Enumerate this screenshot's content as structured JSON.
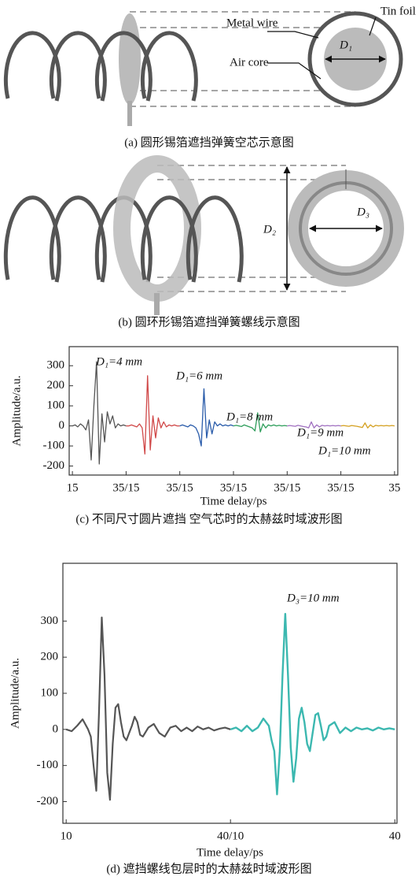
{
  "figure_a": {
    "labels": {
      "metal_wire": "Metal wire",
      "tin_foil": "Tin foil",
      "air_core": "Air core",
      "d1": "D₁"
    },
    "caption": "(a) 圆形锡箔遮挡弹簧空芯示意图"
  },
  "figure_b": {
    "labels": {
      "d2": "D₂",
      "d3": "D₃"
    },
    "caption": "(b) 圆环形锡箔遮挡弹簧螺线示意图"
  },
  "chart_data": [
    {
      "type": "line",
      "x_label": "Time delay/ps",
      "y_label": "Amplitude/a.u.",
      "caption": "(c) 不同尺寸圆片遮挡 空气芯时的太赫兹时域波形图",
      "xlim": [
        13.8,
        136.2
      ],
      "ylim": [
        -245,
        395
      ],
      "xticks": [
        15,
        {
          "value": 35,
          "label": "35/15"
        },
        {
          "value": 55,
          "label": "35/15"
        },
        {
          "value": 75,
          "label": "35/15"
        },
        {
          "value": 95,
          "label": "35/15"
        },
        {
          "value": 115,
          "label": "35/15"
        },
        {
          "value": 135,
          "label": "35"
        }
      ],
      "yticks": [
        -200,
        -100,
        0,
        100,
        200,
        300
      ],
      "series": [
        {
          "color": "#555555",
          "x": [
            15,
            16,
            17,
            18,
            19,
            20,
            21,
            22,
            23,
            24,
            25,
            26,
            27,
            28,
            29,
            30,
            31,
            32,
            33,
            34,
            35
          ],
          "values": [
            0,
            5,
            -5,
            10,
            0,
            -20,
            30,
            -170,
            100,
            320,
            -190,
            60,
            -80,
            70,
            10,
            50,
            -10,
            10,
            0,
            5,
            0
          ]
        },
        {
          "name": "D₁=4 mm",
          "color": "#d04848",
          "x": [
            35,
            36,
            37,
            38,
            39,
            40,
            41,
            42,
            43,
            44,
            45,
            46,
            47,
            48,
            49,
            50,
            51,
            52,
            53,
            54,
            55
          ],
          "values": [
            0,
            0,
            5,
            0,
            -5,
            10,
            -10,
            -140,
            250,
            -120,
            50,
            -60,
            40,
            -10,
            20,
            -5,
            5,
            0,
            5,
            0,
            0
          ]
        },
        {
          "name": "D₁=6 mm",
          "color": "#2a5caa",
          "x": [
            55,
            56,
            57,
            58,
            59,
            60,
            61,
            62,
            63,
            64,
            65,
            66,
            67,
            68,
            69,
            70,
            71,
            72,
            73,
            74,
            75
          ],
          "values": [
            0,
            5,
            0,
            -5,
            5,
            0,
            -10,
            -40,
            -100,
            185,
            -60,
            30,
            -40,
            20,
            0,
            10,
            0,
            5,
            0,
            5,
            0
          ]
        },
        {
          "name": "D₁=8 mm",
          "color": "#2e9e5b",
          "x": [
            75,
            76,
            77,
            78,
            79,
            80,
            81,
            82,
            83,
            84,
            85,
            86,
            87,
            88,
            89,
            90,
            91,
            92,
            93,
            94,
            95
          ],
          "values": [
            0,
            3,
            0,
            -3,
            5,
            0,
            -5,
            -10,
            -25,
            65,
            -30,
            10,
            -10,
            5,
            0,
            5,
            0,
            3,
            0,
            2,
            0
          ]
        },
        {
          "name": "D₁=9 mm",
          "color": "#a070c0",
          "x": [
            95,
            96,
            97,
            98,
            99,
            100,
            101,
            102,
            103,
            104,
            105,
            106,
            107,
            108,
            109,
            110,
            111,
            112,
            113,
            114,
            115
          ],
          "values": [
            0,
            2,
            0,
            -2,
            3,
            0,
            -3,
            -5,
            -10,
            20,
            -10,
            5,
            -5,
            3,
            0,
            2,
            0,
            2,
            0,
            2,
            0
          ]
        },
        {
          "name": "D₁=10 mm",
          "color": "#d4a020",
          "x": [
            115,
            116,
            117,
            118,
            119,
            120,
            121,
            122,
            123,
            124,
            125,
            126,
            127,
            128,
            129,
            130,
            131,
            132,
            133,
            134,
            135
          ],
          "values": [
            0,
            2,
            0,
            -2,
            2,
            0,
            -2,
            -5,
            -8,
            15,
            -10,
            5,
            -5,
            3,
            0,
            2,
            0,
            2,
            0,
            2,
            0
          ]
        }
      ]
    },
    {
      "type": "line",
      "x_label": "Time delay/ps",
      "y_label": "Amplitude/a.u.",
      "caption": "(d) 遮挡螺线包层时的太赫兹时域波形图",
      "annotation": "D₃=10 mm",
      "xlim": [
        9.4,
        70.4
      ],
      "ylim": [
        -260,
        460
      ],
      "xticks": [
        10,
        {
          "value": 40,
          "label": "40/10"
        },
        {
          "value": 70,
          "label": "40"
        }
      ],
      "yticks": [
        -200,
        -100,
        0,
        100,
        200,
        300
      ],
      "series": [
        {
          "color": "#555555",
          "x": [
            10,
            11,
            12,
            13,
            14,
            14.5,
            15,
            15.5,
            16,
            16.5,
            17,
            17.5,
            18,
            18.5,
            19,
            19.5,
            20,
            20.5,
            21,
            21.5,
            22,
            22.5,
            23,
            23.5,
            24,
            25,
            26,
            27,
            28,
            29,
            30,
            31,
            32,
            33,
            34,
            35,
            36,
            37,
            38,
            39,
            40
          ],
          "values": [
            0,
            -5,
            10,
            28,
            0,
            -20,
            -100,
            -170,
            50,
            310,
            150,
            -120,
            -195,
            -40,
            60,
            70,
            20,
            -20,
            -30,
            -10,
            10,
            35,
            20,
            -15,
            -20,
            5,
            15,
            -10,
            -20,
            5,
            10,
            -5,
            5,
            -5,
            8,
            0,
            5,
            -3,
            2,
            5,
            0
          ]
        },
        {
          "color": "#3cb8b0",
          "x": [
            40,
            41,
            42,
            43,
            44,
            45,
            46,
            47,
            47.5,
            48,
            48.5,
            49,
            49.5,
            50,
            50.5,
            51,
            51.5,
            52,
            52.5,
            53,
            53.5,
            54,
            54.5,
            55,
            55.5,
            56,
            56.5,
            57,
            57.5,
            58,
            59,
            60,
            61,
            62,
            63,
            64,
            65,
            66,
            67,
            68,
            69,
            70
          ],
          "values": [
            0,
            5,
            -5,
            10,
            -5,
            5,
            30,
            10,
            -30,
            -60,
            -180,
            -60,
            150,
            320,
            150,
            -50,
            -145,
            -80,
            30,
            60,
            20,
            -40,
            -60,
            -10,
            40,
            45,
            10,
            -30,
            -20,
            10,
            20,
            -10,
            5,
            -5,
            5,
            0,
            3,
            -3,
            5,
            0,
            3,
            0
          ]
        }
      ]
    }
  ]
}
